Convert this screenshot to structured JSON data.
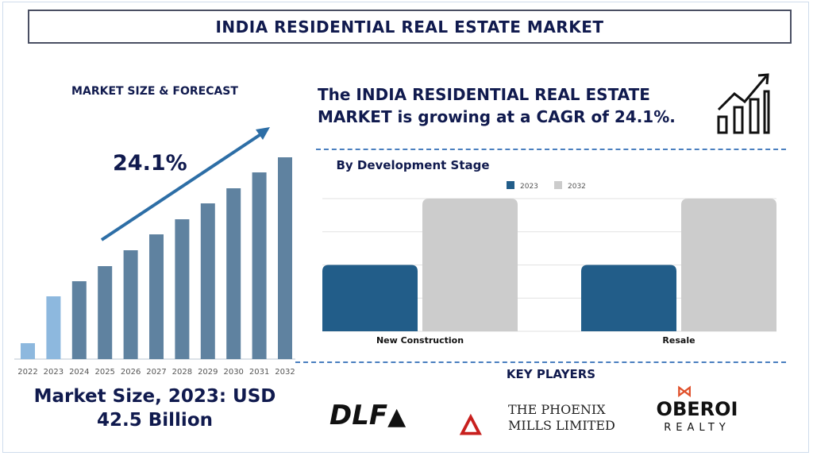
{
  "header": {
    "title": "INDIA RESIDENTIAL REAL ESTATE MARKET"
  },
  "left": {
    "heading": "MARKET SIZE & FORECAST",
    "cagr_label": "24.1%",
    "market_size_line1": "Market Size, 2023: USD",
    "market_size_line2": "42.5 Billion"
  },
  "right": {
    "tagline": "The INDIA RESIDENTIAL REAL ESTATE MARKET is growing at a CAGR of 24.1%.",
    "key_players_heading": "KEY PLAYERS",
    "players": [
      {
        "name": "DLF"
      },
      {
        "name": "THE PHOENIX",
        "sub": "MILLS LIMITED"
      },
      {
        "name": "OBEROI",
        "sub": "REALTY"
      }
    ]
  },
  "chart_data": [
    {
      "type": "bar",
      "title": "",
      "categories": [
        "2022",
        "2023",
        "2024",
        "2025",
        "2026",
        "2027",
        "2028",
        "2029",
        "2030",
        "2031",
        "2032"
      ],
      "values": [
        20,
        79,
        98,
        117,
        137,
        157,
        176,
        196,
        215,
        235,
        254
      ],
      "ylim": [
        0,
        260
      ],
      "grid": false,
      "colors": [
        "#8db8de",
        "#8db8de",
        "#5f82a0",
        "#5f82a0",
        "#5f82a0",
        "#5f82a0",
        "#5f82a0",
        "#5f82a0",
        "#5f82a0",
        "#5f82a0",
        "#5f82a0"
      ]
    },
    {
      "type": "bar",
      "title": "By Development Stage",
      "categories": [
        "New Construction",
        "Resale"
      ],
      "series": [
        {
          "name": "2023",
          "values": [
            2,
            2
          ],
          "color": "#225d89"
        },
        {
          "name": "2032",
          "values": [
            4,
            4
          ],
          "color": "#cccccc"
        }
      ],
      "ylim": [
        0,
        4
      ],
      "grid": true,
      "legend": "top"
    }
  ]
}
